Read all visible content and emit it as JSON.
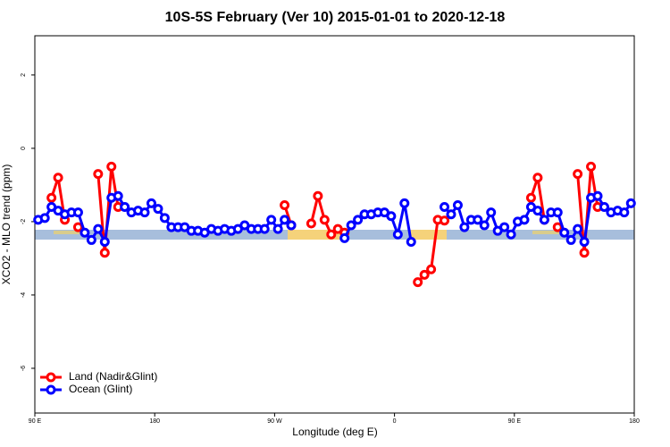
{
  "chart_data": {
    "type": "line",
    "title": "10S-5S February (Ver 10)   2015-01-01 to 2020-12-18",
    "x_label": "Longitude (deg E)",
    "y_label": "XCO2 - MLO trend (ppm)",
    "x": [
      92.5,
      97.5,
      102.5,
      107.5,
      112.5,
      117.5,
      122.5,
      127.5,
      132.5,
      137.5,
      142.5,
      147.5,
      152.5,
      157.5,
      162.5,
      167.5,
      172.5,
      177.5,
      182.5,
      187.5,
      192.5,
      197.5,
      202.5,
      207.5,
      212.5,
      217.5,
      222.5,
      227.5,
      232.5,
      237.5,
      242.5,
      247.5,
      252.5,
      257.5,
      262.5,
      267.5,
      272.5,
      277.5,
      282.5,
      287.5,
      292.5,
      297.5,
      302.5,
      307.5,
      312.5,
      317.5,
      322.5,
      327.5,
      332.5,
      337.5,
      342.5,
      347.5,
      352.5,
      357.5,
      362.5,
      367.5,
      372.5,
      377.5,
      382.5,
      387.5,
      392.5,
      397.5,
      402.5,
      407.5,
      412.5,
      417.5,
      422.5,
      427.5,
      432.5,
      437.5,
      442.5,
      447.5,
      452.5,
      457.5,
      462.5,
      467.5,
      472.5,
      477.5,
      482.5,
      487.5,
      492.5,
      497.5,
      502.5,
      507.5,
      512.5,
      517.5,
      522.5,
      527.5,
      532.5,
      537.5
    ],
    "series": [
      {
        "name": "Land (Nadir&Glint)",
        "color": "#ff0000",
        "values": [
          null,
          null,
          -1.35,
          -0.8,
          -1.95,
          null,
          -2.15,
          null,
          null,
          -0.7,
          -2.85,
          -0.5,
          -1.6,
          null,
          null,
          null,
          null,
          null,
          null,
          null,
          null,
          null,
          null,
          null,
          null,
          null,
          null,
          null,
          null,
          null,
          null,
          null,
          null,
          null,
          null,
          null,
          null,
          -1.55,
          -2.1,
          null,
          null,
          -2.05,
          -1.3,
          -1.95,
          -2.35,
          -2.2,
          -2.3,
          null,
          null,
          null,
          null,
          null,
          null,
          null,
          null,
          null,
          null,
          -3.65,
          -3.45,
          -3.3,
          -1.95,
          -1.97,
          null,
          null,
          null,
          null,
          null,
          null,
          null,
          null,
          null,
          null,
          null,
          null,
          -1.35,
          -0.8,
          -1.95,
          null,
          -2.15,
          null,
          null,
          -0.7,
          -2.85,
          -0.5,
          -1.6,
          null,
          null,
          null,
          null,
          null
        ]
      },
      {
        "name": "Ocean (Glint)",
        "color": "#0000ff",
        "values": [
          -1.95,
          -1.9,
          -1.6,
          -1.7,
          -1.8,
          -1.75,
          -1.75,
          -2.3,
          -2.5,
          -2.2,
          -2.55,
          -1.35,
          -1.3,
          -1.6,
          -1.75,
          -1.7,
          -1.75,
          -1.5,
          -1.65,
          -1.9,
          -2.15,
          -2.15,
          -2.15,
          -2.25,
          -2.25,
          -2.3,
          -2.2,
          -2.25,
          -2.2,
          -2.25,
          -2.2,
          -2.1,
          -2.2,
          -2.2,
          -2.2,
          -1.95,
          -2.2,
          -1.95,
          -2.1,
          null,
          null,
          null,
          null,
          null,
          null,
          null,
          -2.45,
          -2.1,
          -1.95,
          -1.8,
          -1.8,
          -1.75,
          -1.75,
          -1.85,
          -2.35,
          -1.5,
          -2.55,
          null,
          null,
          null,
          null,
          -1.6,
          -1.8,
          -1.55,
          -2.15,
          -1.95,
          -1.95,
          -2.1,
          -1.75,
          -2.25,
          -2.15,
          -2.35,
          -2.0,
          -1.95,
          -1.6,
          -1.7,
          -1.95,
          -1.75,
          -1.75,
          -2.3,
          -2.5,
          -2.2,
          -2.55,
          -1.35,
          -1.3,
          -1.6,
          -1.75,
          -1.7,
          -1.75,
          -1.5
        ]
      }
    ],
    "xlim": [
      90,
      540
    ],
    "xticks": [
      {
        "value": 90,
        "label": "90 E"
      },
      180,
      {
        "value": 270,
        "label": "90 W"
      },
      {
        "value": 360,
        "label": "0"
      },
      {
        "value": 450,
        "label": "90 E"
      },
      {
        "value": 540,
        "label": "180"
      }
    ],
    "ylim": [
      -7.22,
      3.07
    ],
    "yticks": [
      -6,
      -4,
      -2,
      0,
      2
    ],
    "legend": "bottom-left"
  }
}
